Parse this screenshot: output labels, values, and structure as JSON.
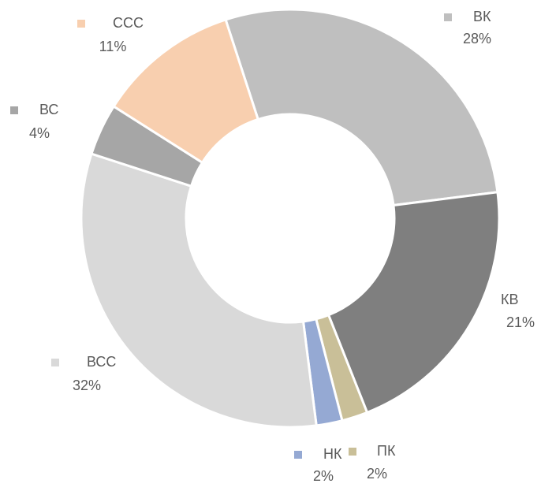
{
  "chart_data": {
    "type": "donut",
    "categories": [
      "ВК",
      "КВ",
      "ПК",
      "НК",
      "ВСС",
      "ВС",
      "ССС"
    ],
    "values": [
      28,
      21,
      2,
      2,
      32,
      4,
      11
    ],
    "value_labels": [
      "28%",
      "21%",
      "2%",
      "2%",
      "32%",
      "4%",
      "11%"
    ],
    "colors": [
      "#bfbfbf",
      "#7f7f7f",
      "#c9bf98",
      "#95a9d3",
      "#d9d9d9",
      "#a6a6a6",
      "#f8cfaf"
    ]
  }
}
